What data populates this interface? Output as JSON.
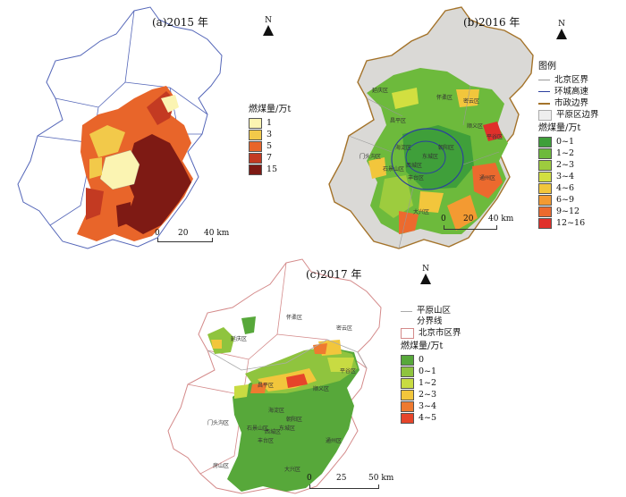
{
  "panel_a": {
    "title": "(a)2015 年",
    "north_label": "N",
    "legend": {
      "title": "燃煤量/万t",
      "items": [
        {
          "label": "1",
          "color": "#fbf4b2"
        },
        {
          "label": "3",
          "color": "#f2c94a"
        },
        {
          "label": "5",
          "color": "#e8652a"
        },
        {
          "label": "7",
          "color": "#c33a22"
        },
        {
          "label": "15",
          "color": "#7e1a14"
        }
      ]
    },
    "scale": [
      "0",
      "20",
      "40 km"
    ]
  },
  "panel_b": {
    "title": "(b)2016 年",
    "north_label": "N",
    "legend": {
      "title1": "图例",
      "lines": [
        {
          "label": "北京区界",
          "color": "#999999"
        },
        {
          "label": "环城高速",
          "color": "#2b3f9e"
        },
        {
          "label": "市政边界",
          "color": "#a4732a"
        },
        {
          "label": "平原区边界",
          "color": "#cccccc"
        }
      ],
      "title2": "燃煤量/万t",
      "items": [
        {
          "label": "0~1",
          "color": "#3f9f3a"
        },
        {
          "label": "1~2",
          "color": "#6dba3c"
        },
        {
          "label": "2~3",
          "color": "#9dcc3e"
        },
        {
          "label": "3~4",
          "color": "#d2df40"
        },
        {
          "label": "4~6",
          "color": "#f2c63c"
        },
        {
          "label": "6~9",
          "color": "#f39a32"
        },
        {
          "label": "9~12",
          "color": "#ec6a2e"
        },
        {
          "label": "12~16",
          "color": "#e0302a"
        }
      ]
    },
    "scale": [
      "0",
      "20",
      "40 km"
    ],
    "districts": [
      "门头沟区",
      "石景山区",
      "海淀区",
      "东城区",
      "西城区",
      "朝阳区",
      "丰台区",
      "大兴区",
      "通州区",
      "顺义区",
      "昌平区",
      "怀柔区",
      "密云区",
      "平谷区",
      "延庆区"
    ]
  },
  "panel_c": {
    "title": "(c)2017 年",
    "north_label": "N",
    "legend": {
      "lines": [
        {
          "label": "平原山区",
          "label2": "分界线",
          "color": "#aaaaaa"
        },
        {
          "label": "北京市区界",
          "color": "#d48a8a"
        }
      ],
      "title": "燃煤量/万t",
      "items": [
        {
          "label": "0",
          "color": "#57a83a"
        },
        {
          "label": "0~1",
          "color": "#8fc43e"
        },
        {
          "label": "1~2",
          "color": "#c8db42"
        },
        {
          "label": "2~3",
          "color": "#f2c63c"
        },
        {
          "label": "3~4",
          "color": "#ee7a30"
        },
        {
          "label": "4~5",
          "color": "#e6452a"
        }
      ]
    },
    "scale": [
      "0",
      "25",
      "50 km"
    ],
    "districts": [
      "怀柔区",
      "密云区",
      "延庆区",
      "平谷区",
      "昌平区",
      "顺义区",
      "门头沟区",
      "海淀区",
      "朝阳区",
      "东城区",
      "西城区",
      "石景山区",
      "丰台区",
      "通州区",
      "房山区",
      "大兴区"
    ]
  }
}
